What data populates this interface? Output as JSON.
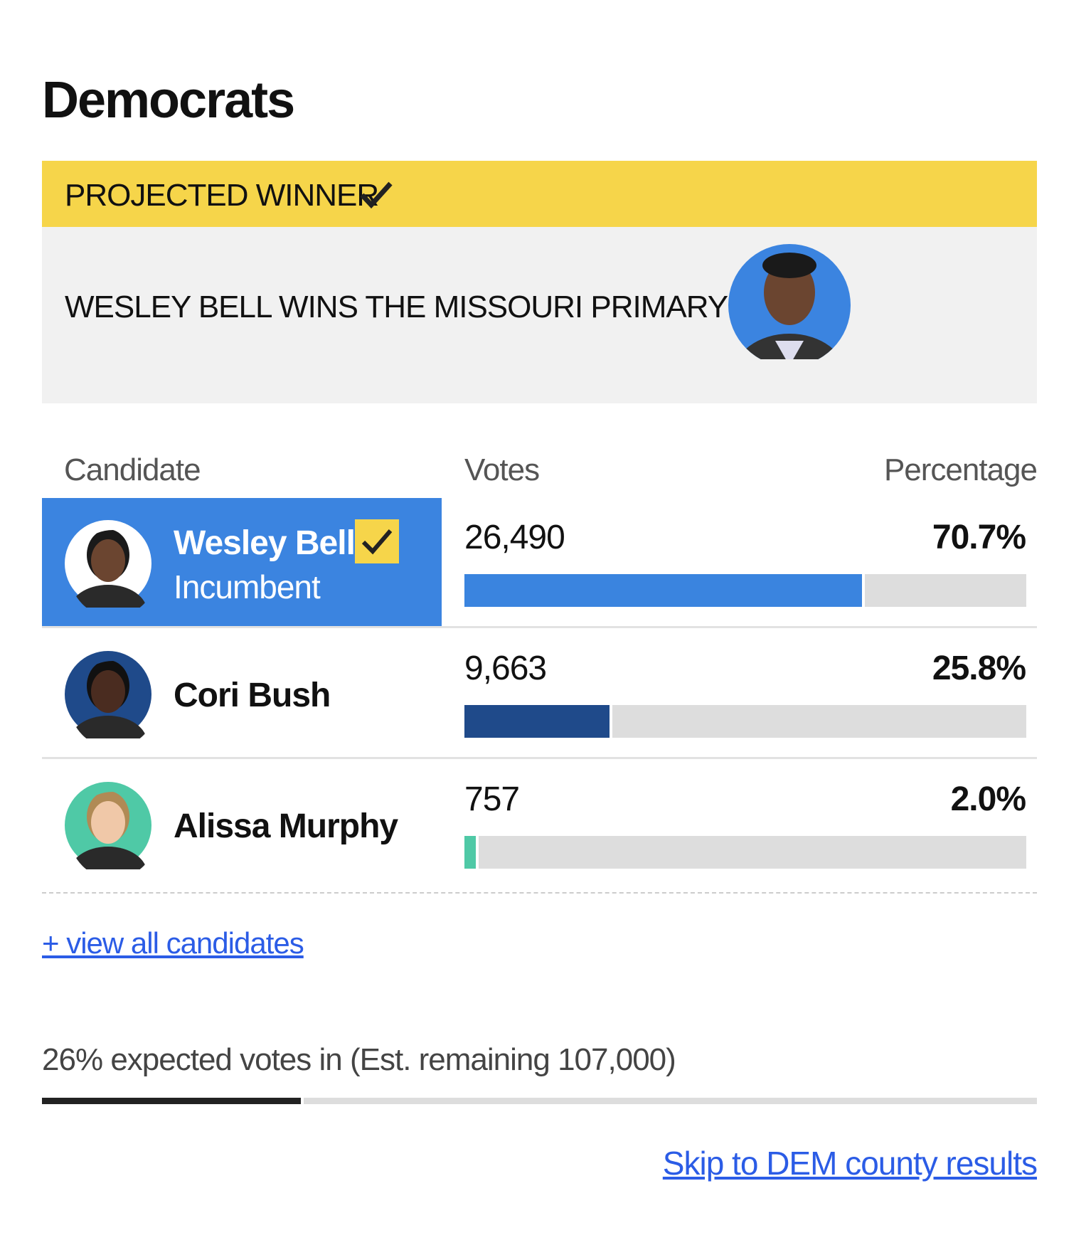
{
  "section_title": "Democrats",
  "banner": {
    "label": "PROJECTED WINNER",
    "headline": "WESLEY BELL WINS THE MISSOURI PRIMARY"
  },
  "table": {
    "headers": [
      "Candidate",
      "Votes",
      "Percentage"
    ],
    "rows": [
      {
        "name": "Wesley Bell",
        "note": "Incumbent",
        "votes": "26,490",
        "percent": 70.7,
        "percent_label": "70.7%",
        "color": "#3a84df",
        "winner": true
      },
      {
        "name": "Cori Bush",
        "votes": "9,663",
        "percent": 25.8,
        "percent_label": "25.8%",
        "color": "#1f4a8a",
        "winner": false
      },
      {
        "name": "Alissa Murphy",
        "votes": "757",
        "percent": 2.0,
        "percent_label": "2.0%",
        "color": "#4fc9a6",
        "winner": false
      }
    ]
  },
  "view_all": "+ view all candidates",
  "expected": {
    "percent": 26,
    "percent_label": "26%",
    "text": "expected votes in (Est. remaining 107,000)"
  },
  "skip_link": "Skip to DEM county results"
}
